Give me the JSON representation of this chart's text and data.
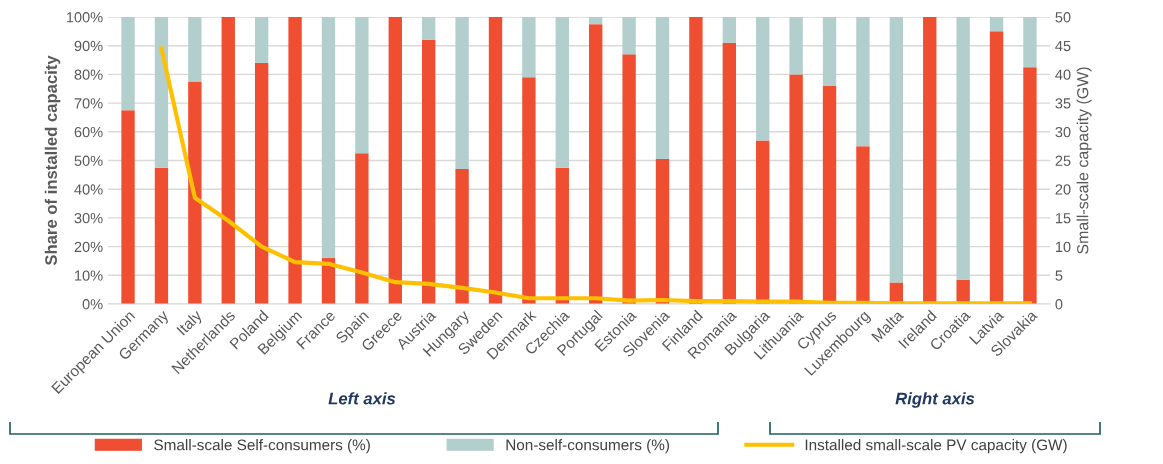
{
  "chart_data": {
    "type": "bar",
    "stacked": true,
    "categories": [
      "European Union",
      "Germany",
      "Italy",
      "Netherlands",
      "Poland",
      "Belgium",
      "France",
      "Spain",
      "Greece",
      "Austria",
      "Hungary",
      "Sweden",
      "Denmark",
      "Czechia",
      "Portugal",
      "Estonia",
      "Slovenia",
      "Finland",
      "Romania",
      "Bulgaria",
      "Lithuania",
      "Cyprus",
      "Luxembourg",
      "Malta",
      "Ireland",
      "Croatia",
      "Latvia",
      "Slovakia"
    ],
    "series": [
      {
        "name": "Small-scale Self-consumers (%)",
        "color": "#f04e30",
        "values": [
          67.5,
          47.5,
          77.5,
          100,
          84,
          100,
          16,
          52.5,
          100,
          92,
          47,
          100,
          79,
          47.5,
          97.5,
          87,
          50.5,
          100,
          91,
          57,
          80,
          76,
          55,
          7.5,
          100,
          8.5,
          95,
          82.5
        ]
      },
      {
        "name": "Non-self-consumers (%)",
        "color": "#b3cfcd",
        "values": [
          32.5,
          52.5,
          22.5,
          0,
          16,
          0,
          84,
          47.5,
          0,
          8,
          53,
          0,
          21,
          52.5,
          2.5,
          13,
          49.5,
          0,
          9,
          43,
          20,
          24,
          45,
          92.5,
          0,
          91.5,
          5,
          17.5
        ]
      },
      {
        "name": "Installed small-scale PV capacity (GW)",
        "type": "line",
        "axis": "y2",
        "color": "#ffc000",
        "values": [
          null,
          44.5,
          18.5,
          14.5,
          10,
          7.3,
          7,
          5.5,
          3.8,
          3.5,
          2.8,
          2,
          1,
          1,
          1,
          0.6,
          0.7,
          0.5,
          0.5,
          0.4,
          0.4,
          0.2,
          0.2,
          0.1,
          0.1,
          0.1,
          0.1,
          0.1
        ]
      }
    ],
    "ylabel": "Share of installed capacity",
    "y2label": "Small-scale capacity (GW)",
    "ylim": [
      0,
      100
    ],
    "yticks": [
      {
        "value": 0,
        "label": "0%"
      },
      {
        "value": 10,
        "label": "10%"
      },
      {
        "value": 20,
        "label": "20%"
      },
      {
        "value": 30,
        "label": "30%"
      },
      {
        "value": 40,
        "label": "40%"
      },
      {
        "value": 50,
        "label": "50%"
      },
      {
        "value": 60,
        "label": "60%"
      },
      {
        "value": 70,
        "label": "70%"
      },
      {
        "value": 80,
        "label": "80%"
      },
      {
        "value": 90,
        "label": "90%"
      },
      {
        "value": 100,
        "label": "100%"
      }
    ],
    "y2lim": [
      0,
      50
    ],
    "y2ticks": [
      0,
      5,
      10,
      15,
      20,
      25,
      30,
      35,
      40,
      45,
      50
    ],
    "annotations": [
      "Left axis",
      "Right axis"
    ],
    "grid": "y",
    "legend": "bottom"
  }
}
